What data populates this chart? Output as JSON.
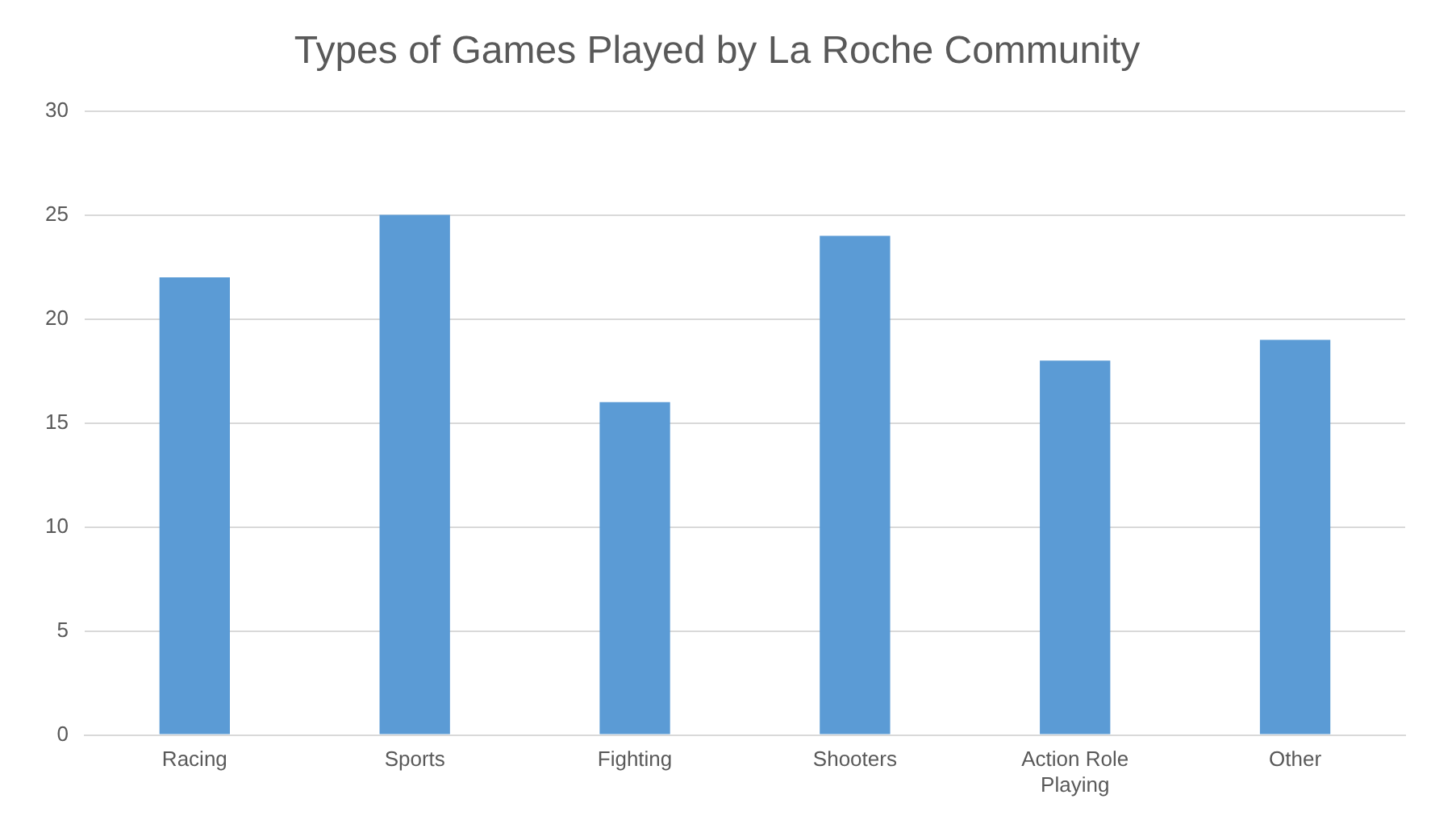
{
  "chart_data": {
    "type": "bar",
    "title": "Types of Games Played by La Roche Community",
    "categories": [
      "Racing",
      "Sports",
      "Fighting",
      "Shooters",
      "Action Role Playing",
      "Other"
    ],
    "values": [
      22,
      25,
      16,
      24,
      18,
      19
    ],
    "color": "#5b9bd5",
    "ylim": [
      0,
      30
    ],
    "yticks": [
      0,
      5,
      10,
      15,
      20,
      25,
      30
    ],
    "grid": "y",
    "legend": false
  }
}
